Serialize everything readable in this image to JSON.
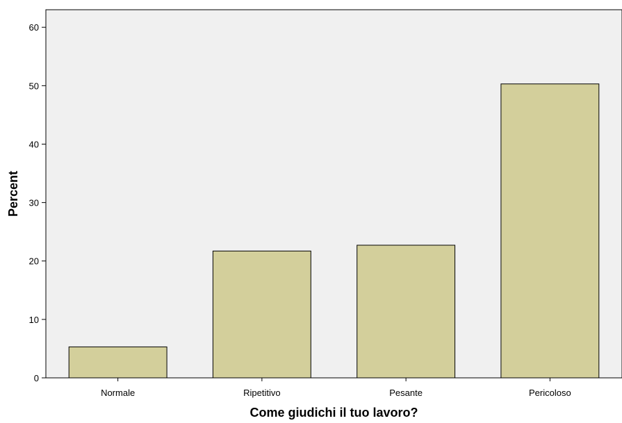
{
  "chart_data": {
    "type": "bar",
    "title": "",
    "xlabel": "Come giudichi il tuo lavoro?",
    "ylabel": "Percent",
    "categories": [
      "Normale",
      "Ripetitivo",
      "Pesante",
      "Pericoloso"
    ],
    "values": [
      5.3,
      21.7,
      22.7,
      50.3
    ],
    "ylim": [
      0,
      63
    ],
    "yticks": [
      0,
      10,
      20,
      30,
      40,
      50,
      60
    ],
    "grid": false,
    "legend": "none",
    "colors": {
      "bar_fill": "#d3cf9b",
      "bar_stroke": "#000000",
      "plot_background": "#f0f0f0",
      "axis": "#000000"
    }
  }
}
